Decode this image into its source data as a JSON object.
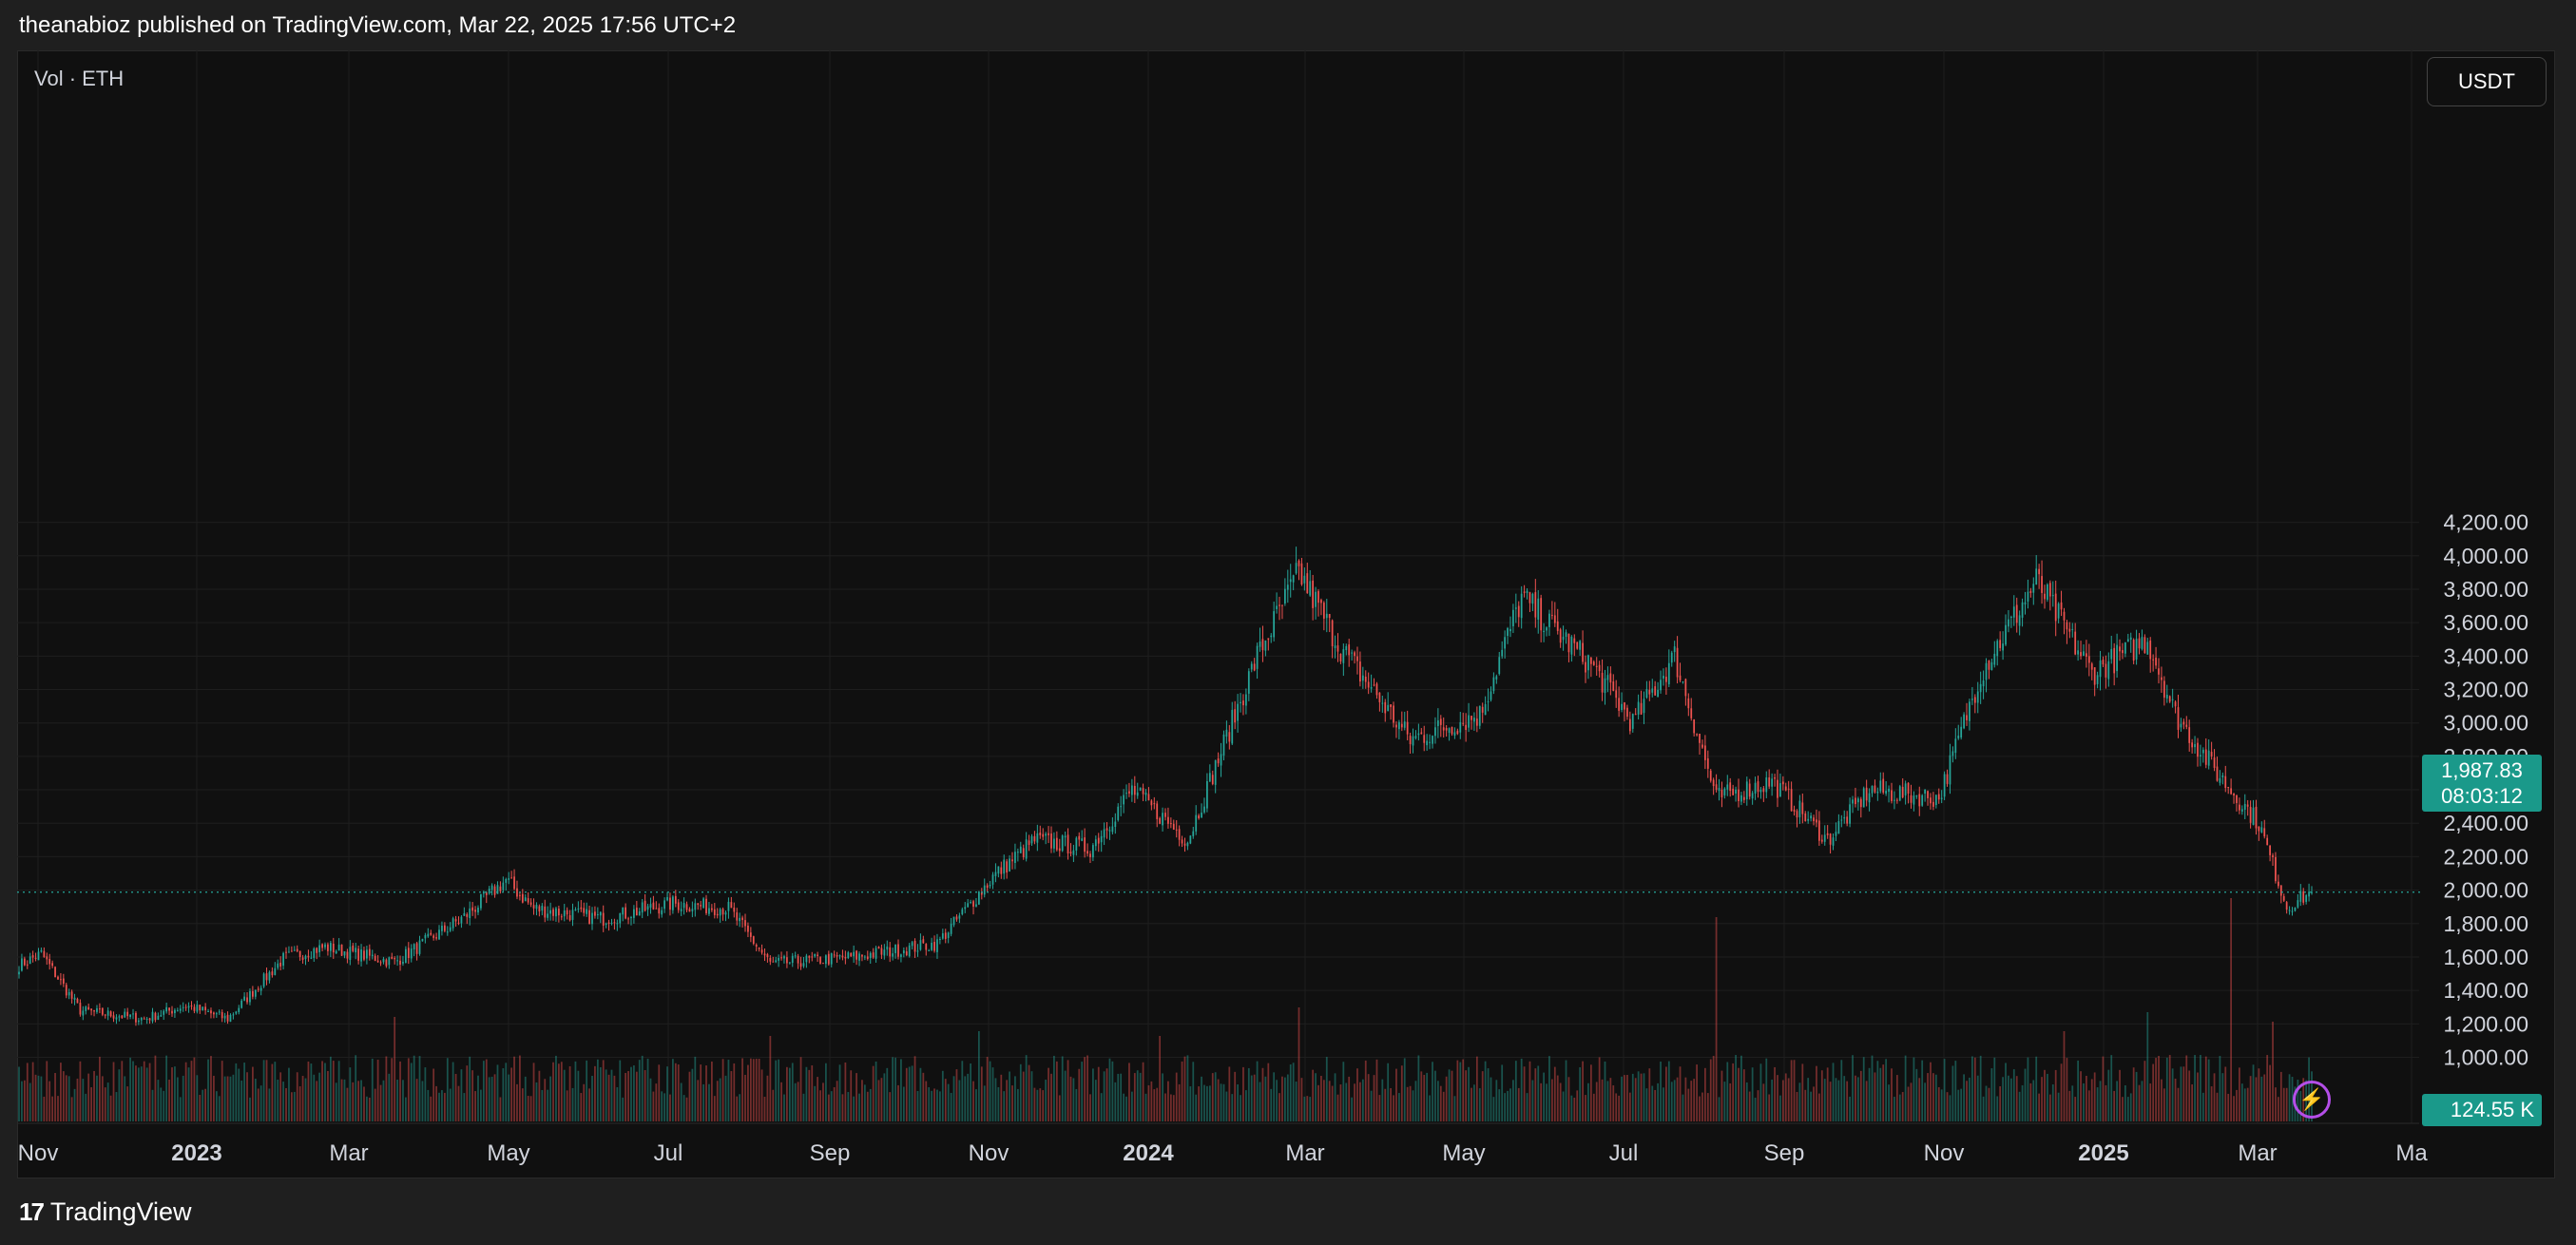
{
  "header": {
    "published_text": "theanabioz published on TradingView.com, Mar 22, 2025 17:56 UTC+2"
  },
  "chart_data": {
    "type": "candlestick",
    "symbol_label": "Vol · ETH",
    "currency": "USDT",
    "last_price": "1,987.83",
    "countdown": "08:03:12",
    "last_volume": "124.55 K",
    "ylim": [
      1050,
      4300
    ],
    "y_ticks": [
      "4,200.00",
      "4,000.00",
      "3,800.00",
      "3,600.00",
      "3,400.00",
      "3,200.00",
      "3,000.00",
      "2,800.00",
      "2,600.00",
      "2,400.00",
      "2,200.00",
      "2,000.00",
      "1,800.00",
      "1,600.00",
      "1,400.00",
      "1,200.00",
      "1,000.00"
    ],
    "x_ticks": [
      {
        "label": "Nov",
        "bold": false
      },
      {
        "label": "2023",
        "bold": true
      },
      {
        "label": "Mar",
        "bold": false
      },
      {
        "label": "May",
        "bold": false
      },
      {
        "label": "Jul",
        "bold": false
      },
      {
        "label": "Sep",
        "bold": false
      },
      {
        "label": "Nov",
        "bold": false
      },
      {
        "label": "2024",
        "bold": true
      },
      {
        "label": "Mar",
        "bold": false
      },
      {
        "label": "May",
        "bold": false
      },
      {
        "label": "Jul",
        "bold": false
      },
      {
        "label": "Sep",
        "bold": false
      },
      {
        "label": "Nov",
        "bold": false
      },
      {
        "label": "2025",
        "bold": true
      },
      {
        "label": "Mar",
        "bold": false
      },
      {
        "label": "Ma",
        "bold": false
      }
    ],
    "price_anchors": [
      {
        "t": 0,
        "p": 1550
      },
      {
        "t": 8,
        "p": 1620
      },
      {
        "t": 22,
        "p": 1280
      },
      {
        "t": 45,
        "p": 1230
      },
      {
        "t": 60,
        "p": 1310
      },
      {
        "t": 75,
        "p": 1230
      },
      {
        "t": 95,
        "p": 1590
      },
      {
        "t": 110,
        "p": 1660
      },
      {
        "t": 135,
        "p": 1570
      },
      {
        "t": 160,
        "p": 1840
      },
      {
        "t": 175,
        "p": 2060
      },
      {
        "t": 185,
        "p": 1890
      },
      {
        "t": 210,
        "p": 1830
      },
      {
        "t": 235,
        "p": 1920
      },
      {
        "t": 255,
        "p": 1890
      },
      {
        "t": 270,
        "p": 1560
      },
      {
        "t": 300,
        "p": 1600
      },
      {
        "t": 330,
        "p": 1680
      },
      {
        "t": 350,
        "p": 2080
      },
      {
        "t": 365,
        "p": 2300
      },
      {
        "t": 385,
        "p": 2250
      },
      {
        "t": 400,
        "p": 2600
      },
      {
        "t": 420,
        "p": 2300
      },
      {
        "t": 445,
        "p": 3400
      },
      {
        "t": 460,
        "p": 3900
      },
      {
        "t": 475,
        "p": 3450
      },
      {
        "t": 500,
        "p": 2900
      },
      {
        "t": 525,
        "p": 3050
      },
      {
        "t": 540,
        "p": 3750
      },
      {
        "t": 565,
        "p": 3350
      },
      {
        "t": 580,
        "p": 3000
      },
      {
        "t": 595,
        "p": 3400
      },
      {
        "t": 610,
        "p": 2550
      },
      {
        "t": 630,
        "p": 2650
      },
      {
        "t": 650,
        "p": 2300
      },
      {
        "t": 665,
        "p": 2600
      },
      {
        "t": 690,
        "p": 2550
      },
      {
        "t": 705,
        "p": 3300
      },
      {
        "t": 725,
        "p": 3850
      },
      {
        "t": 745,
        "p": 3300
      },
      {
        "t": 765,
        "p": 3500
      },
      {
        "t": 775,
        "p": 3050
      },
      {
        "t": 790,
        "p": 2700
      },
      {
        "t": 805,
        "p": 2400
      },
      {
        "t": 815,
        "p": 1900
      },
      {
        "t": 824,
        "p": 1988
      }
    ],
    "volume_spikes": [
      {
        "t": 135,
        "v": 2.2
      },
      {
        "t": 270,
        "v": 1.8
      },
      {
        "t": 345,
        "v": 1.9
      },
      {
        "t": 410,
        "v": 1.8
      },
      {
        "t": 460,
        "v": 2.4
      },
      {
        "t": 610,
        "v": 4.3
      },
      {
        "t": 735,
        "v": 1.9
      },
      {
        "t": 765,
        "v": 2.3
      },
      {
        "t": 795,
        "v": 4.7
      },
      {
        "t": 810,
        "v": 2.1
      }
    ]
  },
  "footer": {
    "brand": "TradingView",
    "logo_mark": "17"
  }
}
